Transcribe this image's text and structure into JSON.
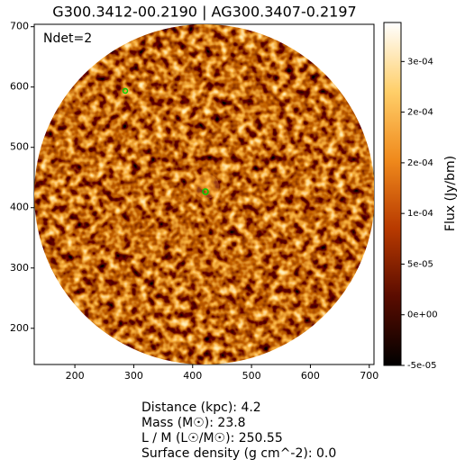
{
  "chart_data": {
    "type": "image",
    "title": "G300.3412-00.2190 | AG300.3407-0.2197",
    "annotation": "Ndet=2",
    "xlim": [
      131,
      708
    ],
    "xticks": [
      200,
      300,
      400,
      500,
      600,
      700
    ],
    "ylim": [
      140,
      704
    ],
    "yticks": [
      200,
      300,
      400,
      500,
      600,
      700
    ],
    "colorbar": {
      "label": "Flux (Jy/bm)",
      "lim": [
        -5e-05,
        0.0002885
      ],
      "ticks": [
        {
          "value": -5e-05,
          "label": "-5e-05"
        },
        {
          "value": 0,
          "label": "0e+00"
        },
        {
          "value": 5e-05,
          "label": "5e-05"
        },
        {
          "value": 0.0001,
          "label": "1e-04"
        },
        {
          "value": 0.00015,
          "label": "2e-04"
        },
        {
          "value": 0.0002,
          "label": "2e-04"
        },
        {
          "value": 0.00025,
          "label": "3e-04"
        }
      ],
      "colors": [
        "#000000",
        "#5a0c00",
        "#b83a00",
        "#f08a1c",
        "#ffcf6a",
        "#ffffff"
      ]
    },
    "info": [
      "Distance (kpc): 4.2",
      "Mass (M☉): 23.8",
      "L / M (L☉/M☉): 250.55",
      "Surface density (g cm^-2): 0.0"
    ]
  }
}
